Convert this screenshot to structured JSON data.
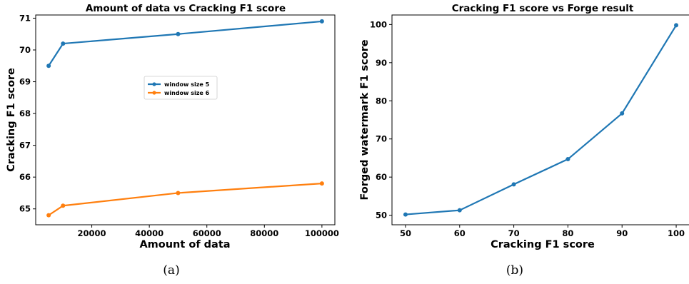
{
  "colors": {
    "series_1": "#1f77b4",
    "series_2": "#ff7f0e"
  },
  "chart_data": [
    {
      "type": "line",
      "title": "Amount of data vs Cracking F1 score",
      "xlabel": "Amount of data",
      "ylabel": "Cracking F1 score",
      "xlim": [
        500,
        104500
      ],
      "ylim": [
        64.5,
        71.1
      ],
      "xticks": [
        20000,
        40000,
        60000,
        80000,
        100000
      ],
      "yticks": [
        65,
        66,
        67,
        68,
        69,
        70,
        71
      ],
      "grid": false,
      "legend_position": "center",
      "series": [
        {
          "name": "window size 5",
          "x": [
            5000,
            10000,
            50000,
            100000
          ],
          "y": [
            69.5,
            70.2,
            70.5,
            70.9
          ]
        },
        {
          "name": "window size 6",
          "x": [
            5000,
            10000,
            50000,
            100000
          ],
          "y": [
            64.8,
            65.1,
            65.5,
            65.8
          ]
        }
      ],
      "caption": "(a)"
    },
    {
      "type": "line",
      "title": "Cracking F1 score vs Forge result",
      "xlabel": "Cracking F1 score",
      "ylabel": "Forged watermark F1 score",
      "xlim": [
        47.5,
        102.5
      ],
      "ylim": [
        47.5,
        102.5
      ],
      "xticks": [
        50,
        60,
        70,
        80,
        90,
        100
      ],
      "yticks": [
        50,
        60,
        70,
        80,
        90,
        100
      ],
      "grid": false,
      "series": [
        {
          "x": [
            50,
            60,
            70,
            80,
            90,
            100
          ],
          "y": [
            50.2,
            51.3,
            58.1,
            64.7,
            76.7,
            99.8
          ]
        }
      ],
      "caption": "(b)"
    }
  ]
}
